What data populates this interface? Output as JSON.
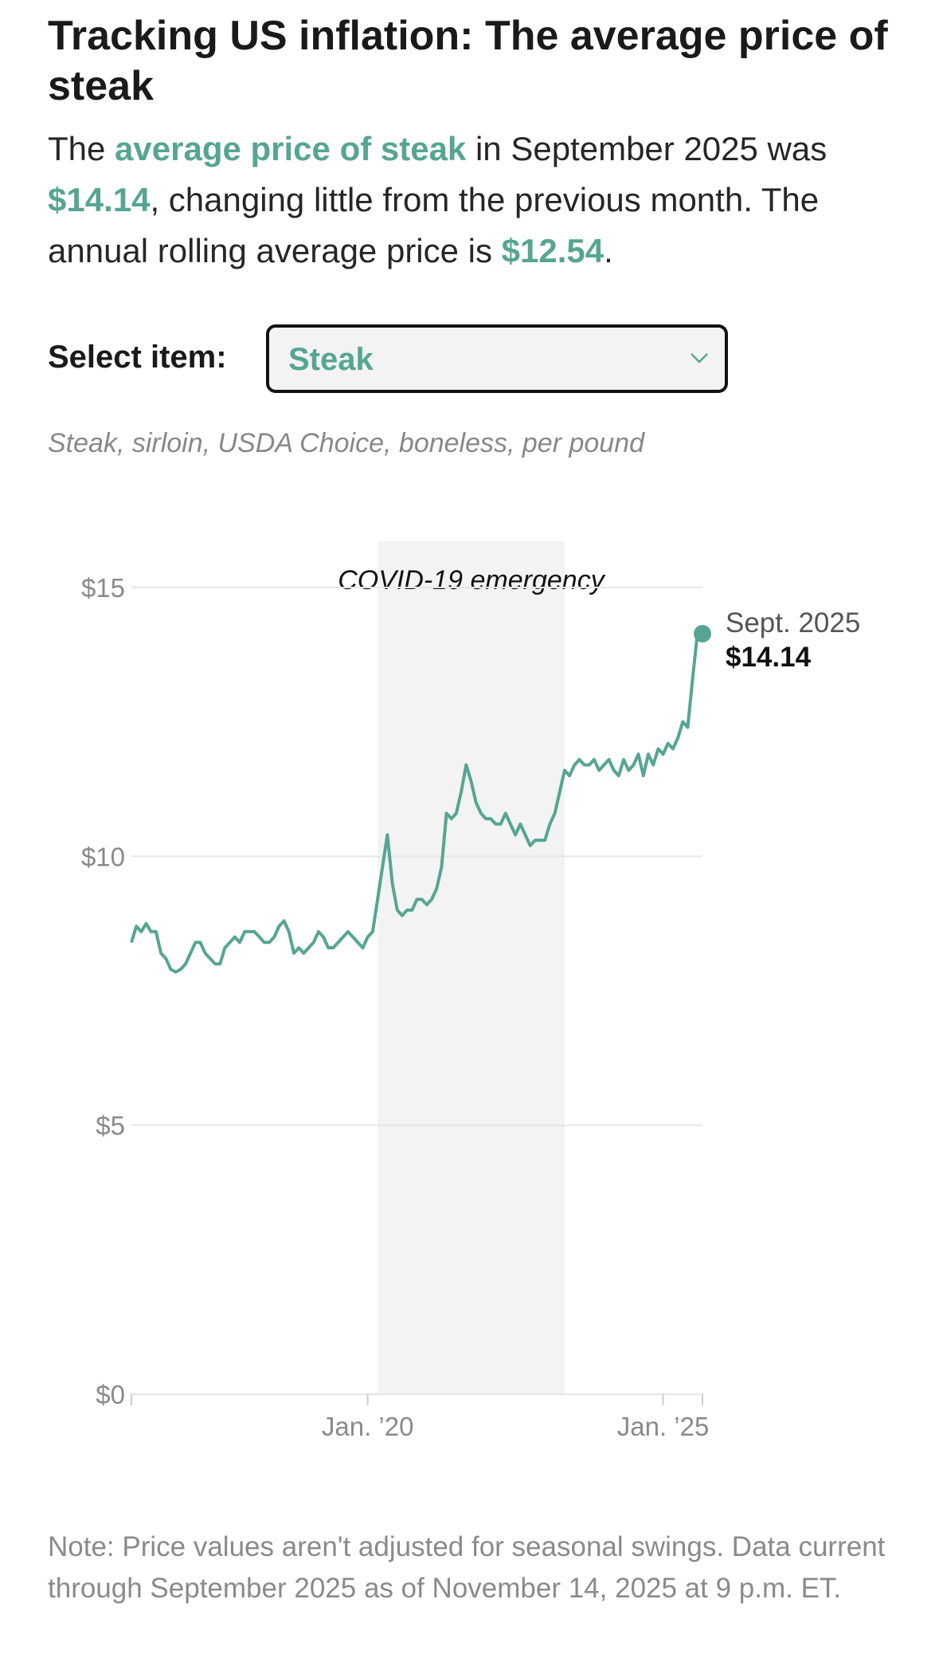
{
  "header": {
    "title": "Tracking US inflation: The average price of steak",
    "subtitle": [
      "The ",
      "average price of steak",
      " in September 2025 was ",
      "$14.14",
      ", changing little from the previous month. The annual rolling average price is ",
      "$12.54",
      "."
    ]
  },
  "selector": {
    "label": "Select item:",
    "value": "Steak"
  },
  "description": "Steak, sirloin, USDA Choice, boneless, per pound",
  "chart_data": {
    "type": "line",
    "color": "#56a593",
    "x": [
      "2016-01",
      "2016-02",
      "2016-03",
      "2016-04",
      "2016-05",
      "2016-06",
      "2016-07",
      "2016-08",
      "2016-09",
      "2016-10",
      "2016-11",
      "2016-12",
      "2017-01",
      "2017-02",
      "2017-03",
      "2017-04",
      "2017-05",
      "2017-06",
      "2017-07",
      "2017-08",
      "2017-09",
      "2017-10",
      "2017-11",
      "2017-12",
      "2018-01",
      "2018-02",
      "2018-03",
      "2018-04",
      "2018-05",
      "2018-06",
      "2018-07",
      "2018-08",
      "2018-09",
      "2018-10",
      "2018-11",
      "2018-12",
      "2019-01",
      "2019-02",
      "2019-03",
      "2019-04",
      "2019-05",
      "2019-06",
      "2019-07",
      "2019-08",
      "2019-09",
      "2019-10",
      "2019-11",
      "2019-12",
      "2020-01",
      "2020-02",
      "2020-03",
      "2020-04",
      "2020-05",
      "2020-06",
      "2020-07",
      "2020-08",
      "2020-09",
      "2020-10",
      "2020-11",
      "2020-12",
      "2021-01",
      "2021-02",
      "2021-03",
      "2021-04",
      "2021-05",
      "2021-06",
      "2021-07",
      "2021-08",
      "2021-09",
      "2021-10",
      "2021-11",
      "2021-12",
      "2022-01",
      "2022-02",
      "2022-03",
      "2022-04",
      "2022-05",
      "2022-06",
      "2022-07",
      "2022-08",
      "2022-09",
      "2022-10",
      "2022-11",
      "2022-12",
      "2023-01",
      "2023-02",
      "2023-03",
      "2023-04",
      "2023-05",
      "2023-06",
      "2023-07",
      "2023-08",
      "2023-09",
      "2023-10",
      "2023-11",
      "2023-12",
      "2024-01",
      "2024-02",
      "2024-03",
      "2024-04",
      "2024-05",
      "2024-06",
      "2024-07",
      "2024-08",
      "2024-09",
      "2024-10",
      "2024-11",
      "2024-12",
      "2025-01",
      "2025-02",
      "2025-03",
      "2025-04",
      "2025-05",
      "2025-06",
      "2025-07",
      "2025-08",
      "2025-09"
    ],
    "values": [
      8.4,
      8.7,
      8.6,
      8.75,
      8.6,
      8.6,
      8.2,
      8.1,
      7.9,
      7.85,
      7.9,
      8.0,
      8.2,
      8.4,
      8.4,
      8.2,
      8.1,
      8.0,
      8.0,
      8.3,
      8.4,
      8.5,
      8.4,
      8.6,
      8.6,
      8.6,
      8.5,
      8.4,
      8.4,
      8.5,
      8.7,
      8.8,
      8.6,
      8.2,
      8.3,
      8.2,
      8.3,
      8.4,
      8.6,
      8.5,
      8.3,
      8.3,
      8.4,
      8.5,
      8.6,
      8.5,
      8.4,
      8.3,
      8.5,
      8.6,
      9.2,
      9.8,
      10.4,
      9.5,
      9.0,
      8.9,
      9.0,
      9.0,
      9.2,
      9.2,
      9.1,
      9.2,
      9.4,
      9.8,
      10.8,
      10.7,
      10.8,
      11.2,
      11.7,
      11.4,
      11.0,
      10.8,
      10.7,
      10.7,
      10.6,
      10.6,
      10.8,
      10.6,
      10.4,
      10.6,
      10.4,
      10.2,
      10.3,
      10.3,
      10.3,
      10.6,
      10.8,
      11.2,
      11.6,
      11.5,
      11.7,
      11.8,
      11.7,
      11.7,
      11.8,
      11.6,
      11.7,
      11.8,
      11.6,
      11.5,
      11.8,
      11.6,
      11.7,
      11.9,
      11.5,
      11.9,
      11.7,
      12.0,
      11.9,
      12.1,
      12.0,
      12.2,
      12.5,
      12.4,
      13.3,
      14.17,
      14.14
    ],
    "xlim": [
      "2016-01",
      "2025-09"
    ],
    "xticks": [
      {
        "value": "2020-01",
        "label": "Jan. ’20"
      },
      {
        "value": "2025-01",
        "label": "Jan. ’25"
      }
    ],
    "ylim": [
      0,
      15.8
    ],
    "yticks": [
      {
        "value": 0,
        "label": "$0"
      },
      {
        "value": 5,
        "label": "$5"
      },
      {
        "value": 10,
        "label": "$10"
      },
      {
        "value": 15,
        "label": "$15"
      }
    ],
    "grid": true,
    "shade": {
      "label": "COVID-19 emergency",
      "start": "2020-03",
      "end": "2023-05"
    },
    "end_annotation": {
      "date": "Sept. 2025",
      "value": "$14.14"
    }
  },
  "note": "Note: Price values aren't adjusted for seasonal swings. Data current through September 2025 as of November 14, 2025 at 9 p.m. ET."
}
